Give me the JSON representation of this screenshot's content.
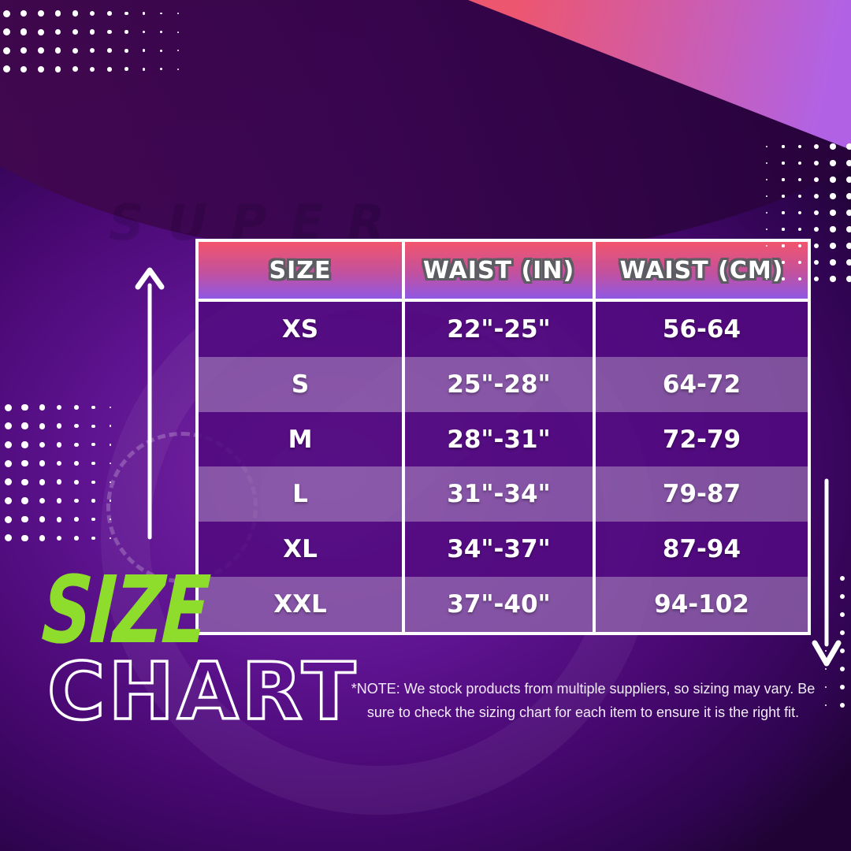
{
  "title": {
    "word1": "SIZE",
    "word2": "CHART"
  },
  "watermark_text": "SUPER",
  "note_lines": [
    "*NOTE: We stock products from multiple suppliers, so sizing may vary. Be",
    "sure to check the sizing chart for  each item to ensure it is the right fit."
  ],
  "chart_data": {
    "type": "table",
    "title": "SIZE CHART",
    "columns": [
      "SIZE",
      "WAIST (IN)",
      "WAIST (CM)"
    ],
    "rows": [
      [
        "XS",
        "22\"-25\"",
        "56-64"
      ],
      [
        "S",
        "25\"-28\"",
        "64-72"
      ],
      [
        "M",
        "28\"-31\"",
        "72-79"
      ],
      [
        "L",
        "31\"-34\"",
        "79-87"
      ],
      [
        "XL",
        "34\"-37\"",
        "87-94"
      ],
      [
        "XXL",
        "37\"-40\"",
        "94-102"
      ]
    ]
  },
  "colors": {
    "accent_green": "#8EDC2B",
    "header_gradient_top": "#F2556C",
    "header_gradient_bottom": "#8F58E4",
    "row_dark": "#530D80",
    "row_light": "#7A4A9C",
    "background_purple": "#4F0A78",
    "triangle_pink": "#ED566F",
    "triangle_purple": "#B162E4",
    "dot_color": "#FFFFFF"
  }
}
